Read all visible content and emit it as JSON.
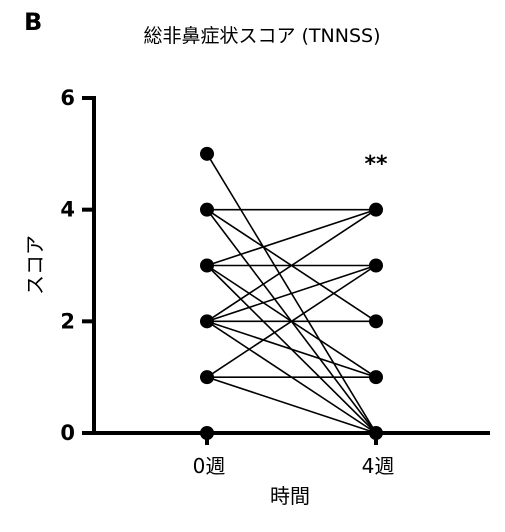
{
  "chart_data": {
    "type": "line",
    "panel_label": "B",
    "title": "総非鼻症状スコア (TNNSS)",
    "xlabel": "時間",
    "ylabel": "スコア",
    "categories": [
      "0週",
      "4週"
    ],
    "ylim": [
      0,
      6
    ],
    "yticks": [
      "0",
      "2",
      "4",
      "6"
    ],
    "annotation": "**",
    "paired_lines": [
      [
        5,
        0
      ],
      [
        4,
        4
      ],
      [
        4,
        2
      ],
      [
        4,
        0
      ],
      [
        3,
        4
      ],
      [
        3,
        3
      ],
      [
        3,
        1
      ],
      [
        3,
        0
      ],
      [
        2,
        4
      ],
      [
        2,
        3
      ],
      [
        2,
        2
      ],
      [
        2,
        1
      ],
      [
        2,
        0
      ],
      [
        1,
        3
      ],
      [
        1,
        1
      ],
      [
        1,
        0
      ],
      [
        0,
        0
      ]
    ],
    "grid": false,
    "legend": "none",
    "color": "#000000"
  }
}
